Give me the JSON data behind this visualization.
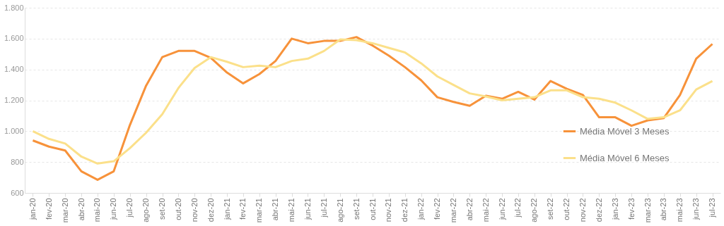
{
  "chart_data": {
    "type": "line",
    "categories": [
      "jan-20",
      "fev-20",
      "mar-20",
      "abr-20",
      "mai-20",
      "jun-20",
      "jul-20",
      "ago-20",
      "set-20",
      "out-20",
      "nov-20",
      "dez-20",
      "jan-21",
      "fev-21",
      "mar-21",
      "abr-21",
      "mai-21",
      "jun-21",
      "jul-21",
      "ago-21",
      "set-21",
      "out-21",
      "nov-21",
      "dez-21",
      "jan-22",
      "fev-22",
      "mar-22",
      "abr-22",
      "mai-22",
      "jun-22",
      "jul-22",
      "ago-22",
      "set-22",
      "out-22",
      "nov-22",
      "dez-22",
      "jan-23",
      "fev-23",
      "mar-23",
      "abr-23",
      "mai-23",
      "jun-23",
      "jul-23"
    ],
    "series": [
      {
        "name": "Média Móvel 3 Meses",
        "color": "#f7923a",
        "values": [
          940,
          900,
          875,
          740,
          685,
          740,
          1040,
          1295,
          1480,
          1520,
          1520,
          1475,
          1380,
          1310,
          1370,
          1455,
          1600,
          1570,
          1585,
          1585,
          1610,
          1555,
          1490,
          1415,
          1330,
          1220,
          1190,
          1165,
          1230,
          1210,
          1255,
          1205,
          1325,
          1275,
          1235,
          1090,
          1090,
          1035,
          1070,
          1085,
          1235,
          1470,
          1565
        ]
      },
      {
        "name": "Média Móvel 6 Meses",
        "color": "#fbe08a",
        "values": [
          1000,
          950,
          920,
          835,
          790,
          805,
          890,
          990,
          1110,
          1280,
          1410,
          1480,
          1450,
          1415,
          1425,
          1415,
          1455,
          1470,
          1520,
          1595,
          1590,
          1570,
          1540,
          1510,
          1440,
          1355,
          1300,
          1245,
          1225,
          1200,
          1210,
          1220,
          1265,
          1265,
          1220,
          1210,
          1185,
          1135,
          1080,
          1090,
          1135,
          1270,
          1325
        ]
      }
    ],
    "ylim": [
      600,
      1800
    ],
    "yticks": [
      {
        "value": 600,
        "label": "600"
      },
      {
        "value": 800,
        "label": "800"
      },
      {
        "value": 1000,
        "label": "1.000"
      },
      {
        "value": 1200,
        "label": "1.200"
      },
      {
        "value": 1400,
        "label": "1.400"
      },
      {
        "value": 1600,
        "label": "1.600"
      },
      {
        "value": 1800,
        "label": "1.800"
      }
    ],
    "grid": "y",
    "legend": "right",
    "marker": "none",
    "line_style": "solid"
  }
}
